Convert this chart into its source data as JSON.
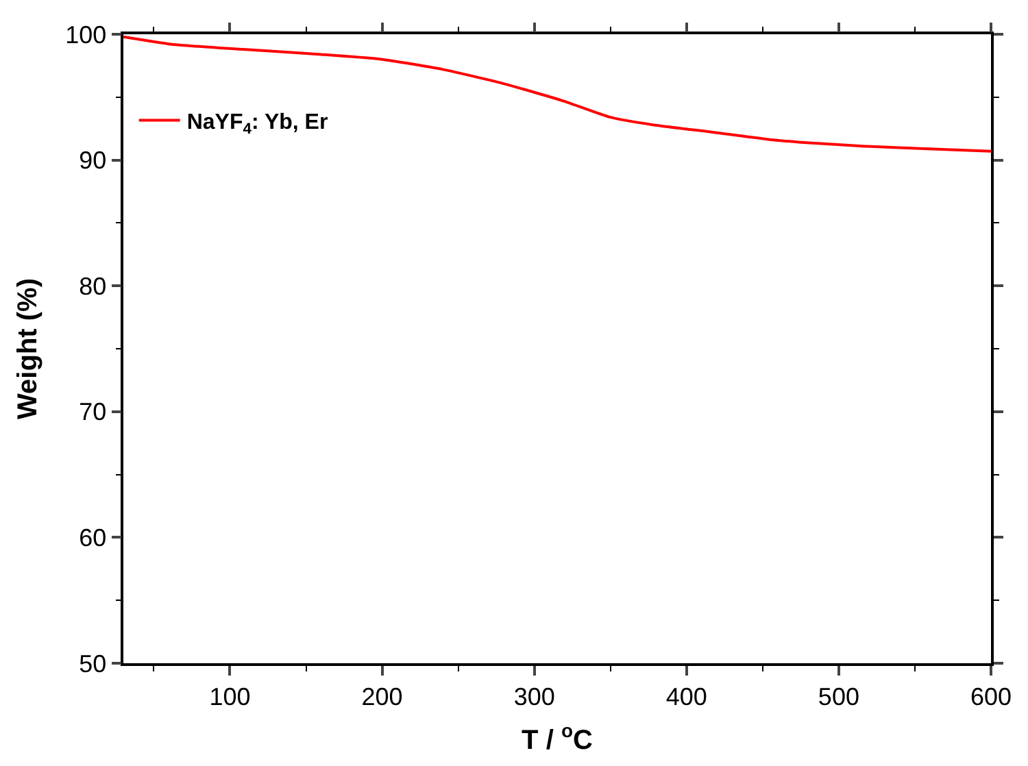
{
  "chart_data": {
    "type": "line",
    "xlabel": "T / $^{o}$C",
    "ylabel": "Weight (%)",
    "xlim": [
      30,
      600
    ],
    "xticks": [
      100,
      200,
      300,
      400,
      500,
      600
    ],
    "ylim": [
      50,
      100
    ],
    "yticks": [
      50,
      60,
      70,
      80,
      90,
      100
    ],
    "legend": "top left",
    "line_style": "solid",
    "series": [
      {
        "name": "NaYF$_{4}$: Yb, Er",
        "color": "#ff0000",
        "x": [
          30,
          62,
          121,
          160,
          200,
          240,
          279,
          319,
          350,
          378,
          418,
          457,
          477,
          517,
          556,
          600
        ],
        "values": [
          99.8,
          99.2,
          98.7,
          98.4,
          98.0,
          97.2,
          96.1,
          94.7,
          93.4,
          92.8,
          92.2,
          91.6,
          91.4,
          91.1,
          90.9,
          90.7
        ]
      }
    ]
  }
}
